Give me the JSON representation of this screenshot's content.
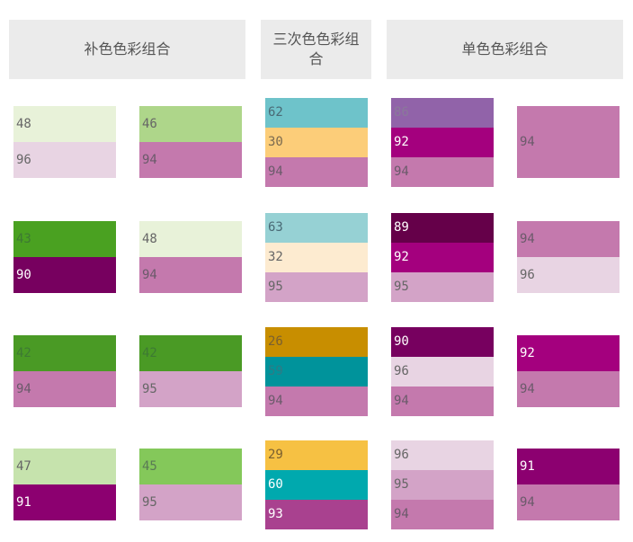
{
  "headers": [
    "补色色彩组合",
    "三次色色彩组合",
    "单色色彩组合"
  ],
  "columns": [
    {
      "section": 0,
      "blocks": [
        [
          {
            "v": "48",
            "bg": "#e8f2d9",
            "fg": "#666"
          },
          {
            "v": "96",
            "bg": "#e8d4e3",
            "fg": "#666"
          }
        ],
        [
          {
            "v": "43",
            "bg": "#4aa121",
            "fg": "#3d7a33"
          },
          {
            "v": "90",
            "bg": "#77005f",
            "fg": "#fff"
          }
        ],
        [
          {
            "v": "42",
            "bg": "#4a9a25",
            "fg": "#3d7a33"
          },
          {
            "v": "94",
            "bg": "#c479ad",
            "fg": "#6a5a6a"
          }
        ],
        [
          {
            "v": "47",
            "bg": "#c6e3ad",
            "fg": "#666"
          },
          {
            "v": "91",
            "bg": "#8c0070",
            "fg": "#fff"
          }
        ]
      ]
    },
    {
      "section": 0,
      "blocks": [
        [
          {
            "v": "46",
            "bg": "#aed68a",
            "fg": "#666"
          },
          {
            "v": "94",
            "bg": "#c479ad",
            "fg": "#6a5a6a"
          }
        ],
        [
          {
            "v": "48",
            "bg": "#e8f2d9",
            "fg": "#666"
          },
          {
            "v": "94",
            "bg": "#c479ad",
            "fg": "#6a5a6a"
          }
        ],
        [
          {
            "v": "42",
            "bg": "#4a9a25",
            "fg": "#3d7a33"
          },
          {
            "v": "95",
            "bg": "#d3a3c7",
            "fg": "#666"
          }
        ],
        [
          {
            "v": "45",
            "bg": "#84c85a",
            "fg": "#5a7a55"
          },
          {
            "v": "95",
            "bg": "#d3a3c7",
            "fg": "#666"
          }
        ]
      ]
    },
    {
      "section": 1,
      "blocks": [
        [
          {
            "v": "62",
            "bg": "#6ec3ca",
            "fg": "#4a6a75"
          },
          {
            "v": "30",
            "bg": "#fccd79",
            "fg": "#7a6a50"
          },
          {
            "v": "94",
            "bg": "#c479ad",
            "fg": "#6a5a6a"
          }
        ],
        [
          {
            "v": "63",
            "bg": "#96d1d4",
            "fg": "#4a6a75"
          },
          {
            "v": "32",
            "bg": "#fdebd0",
            "fg": "#666"
          },
          {
            "v": "95",
            "bg": "#d3a3c7",
            "fg": "#666"
          }
        ],
        [
          {
            "v": "26",
            "bg": "#c88e00",
            "fg": "#7a6030"
          },
          {
            "v": "59",
            "bg": "#00939b",
            "fg": "#307a85"
          },
          {
            "v": "94",
            "bg": "#c479ad",
            "fg": "#6a5a6a"
          }
        ],
        [
          {
            "v": "29",
            "bg": "#f6c143",
            "fg": "#7a6030"
          },
          {
            "v": "60",
            "bg": "#00a9ae",
            "fg": "#fff"
          },
          {
            "v": "93",
            "bg": "#a9418f",
            "fg": "#fff"
          }
        ]
      ]
    },
    {
      "section": 2,
      "blocks": [
        [
          {
            "v": "86",
            "bg": "#9163a9",
            "fg": "#8a7a9a"
          },
          {
            "v": "92",
            "bg": "#a4007e",
            "fg": "#fff"
          },
          {
            "v": "94",
            "bg": "#c479ad",
            "fg": "#6a5a6a"
          }
        ],
        [
          {
            "v": "89",
            "bg": "#650049",
            "fg": "#fff"
          },
          {
            "v": "92",
            "bg": "#a4007e",
            "fg": "#fff"
          },
          {
            "v": "95",
            "bg": "#d3a3c7",
            "fg": "#666"
          }
        ],
        [
          {
            "v": "90",
            "bg": "#77005f",
            "fg": "#fff"
          },
          {
            "v": "96",
            "bg": "#e8d4e3",
            "fg": "#666"
          },
          {
            "v": "94",
            "bg": "#c479ad",
            "fg": "#6a5a6a"
          }
        ],
        [
          {
            "v": "96",
            "bg": "#e8d4e3",
            "fg": "#666"
          },
          {
            "v": "95",
            "bg": "#d3a3c7",
            "fg": "#666"
          },
          {
            "v": "94",
            "bg": "#c479ad",
            "fg": "#6a5a6a"
          }
        ]
      ]
    },
    {
      "section": 2,
      "blocks": [
        [
          {
            "v": "94",
            "bg": "#c479ad",
            "fg": "#6a5a6a"
          }
        ],
        [
          {
            "v": "94",
            "bg": "#c479ad",
            "fg": "#6a5a6a"
          },
          {
            "v": "96",
            "bg": "#e8d4e3",
            "fg": "#666"
          }
        ],
        [
          {
            "v": "92",
            "bg": "#a4007e",
            "fg": "#fff"
          },
          {
            "v": "94",
            "bg": "#c479ad",
            "fg": "#6a5a6a"
          }
        ],
        [
          {
            "v": "91",
            "bg": "#8c0070",
            "fg": "#fff"
          },
          {
            "v": "94",
            "bg": "#c479ad",
            "fg": "#6a5a6a"
          }
        ]
      ]
    }
  ]
}
